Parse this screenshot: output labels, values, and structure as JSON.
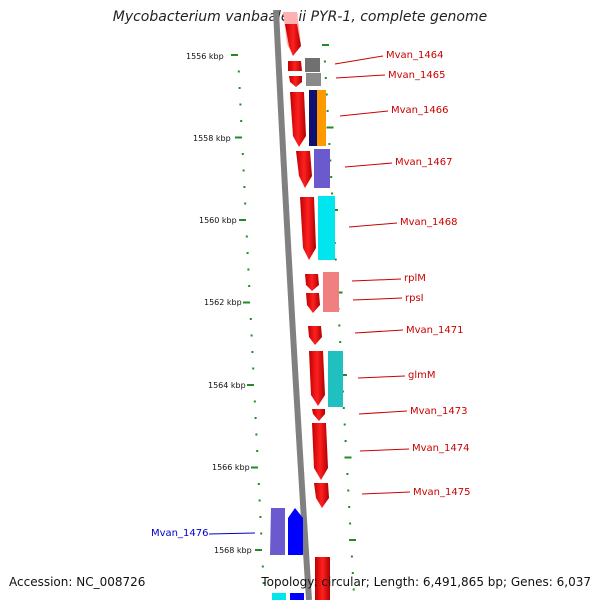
{
  "title": "Mycobacterium vanbaalenii PYR-1, complete genome",
  "footer": {
    "accession": "Accession: NC_008726",
    "topology": "Topology: circular; Length: 6,491,865 bp; Genes: 6,037"
  },
  "ruler": {
    "unit": "kbp",
    "major_ticks": [
      "1556 kbp",
      "1558 kbp",
      "1560 kbp",
      "1562 kbp",
      "1564 kbp",
      "1566 kbp",
      "1568 kbp"
    ]
  },
  "gene_labels": [
    {
      "name": "Mvan_1464",
      "color": "#cc0000"
    },
    {
      "name": "Mvan_1465",
      "color": "#cc0000"
    },
    {
      "name": "Mvan_1466",
      "color": "#cc0000"
    },
    {
      "name": "Mvan_1467",
      "color": "#cc0000"
    },
    {
      "name": "Mvan_1468",
      "color": "#cc0000"
    },
    {
      "name": "rplM",
      "color": "#cc0000"
    },
    {
      "name": "rpsI",
      "color": "#cc0000"
    },
    {
      "name": "Mvan_1471",
      "color": "#cc0000"
    },
    {
      "name": "glmM",
      "color": "#cc0000"
    },
    {
      "name": "Mvan_1473",
      "color": "#cc0000"
    },
    {
      "name": "Mvan_1474",
      "color": "#cc0000"
    },
    {
      "name": "Mvan_1475",
      "color": "#cc0000"
    },
    {
      "name": "Mvan_1476",
      "color": "#0000cc"
    }
  ],
  "colors": {
    "backbone": "#808080",
    "ruler_ticks": "#228b22",
    "forward_strand_genes": "#ff0000",
    "cog_gray": "#707070",
    "cog_navy": "#101070",
    "cog_orange": "#ff9900",
    "cog_purple": "#6a5acd",
    "cog_cyan": "#00e5ee",
    "cog_salmon": "#f08080",
    "cog_teal": "#20c0c0",
    "cog_blue": "#0000ff"
  }
}
